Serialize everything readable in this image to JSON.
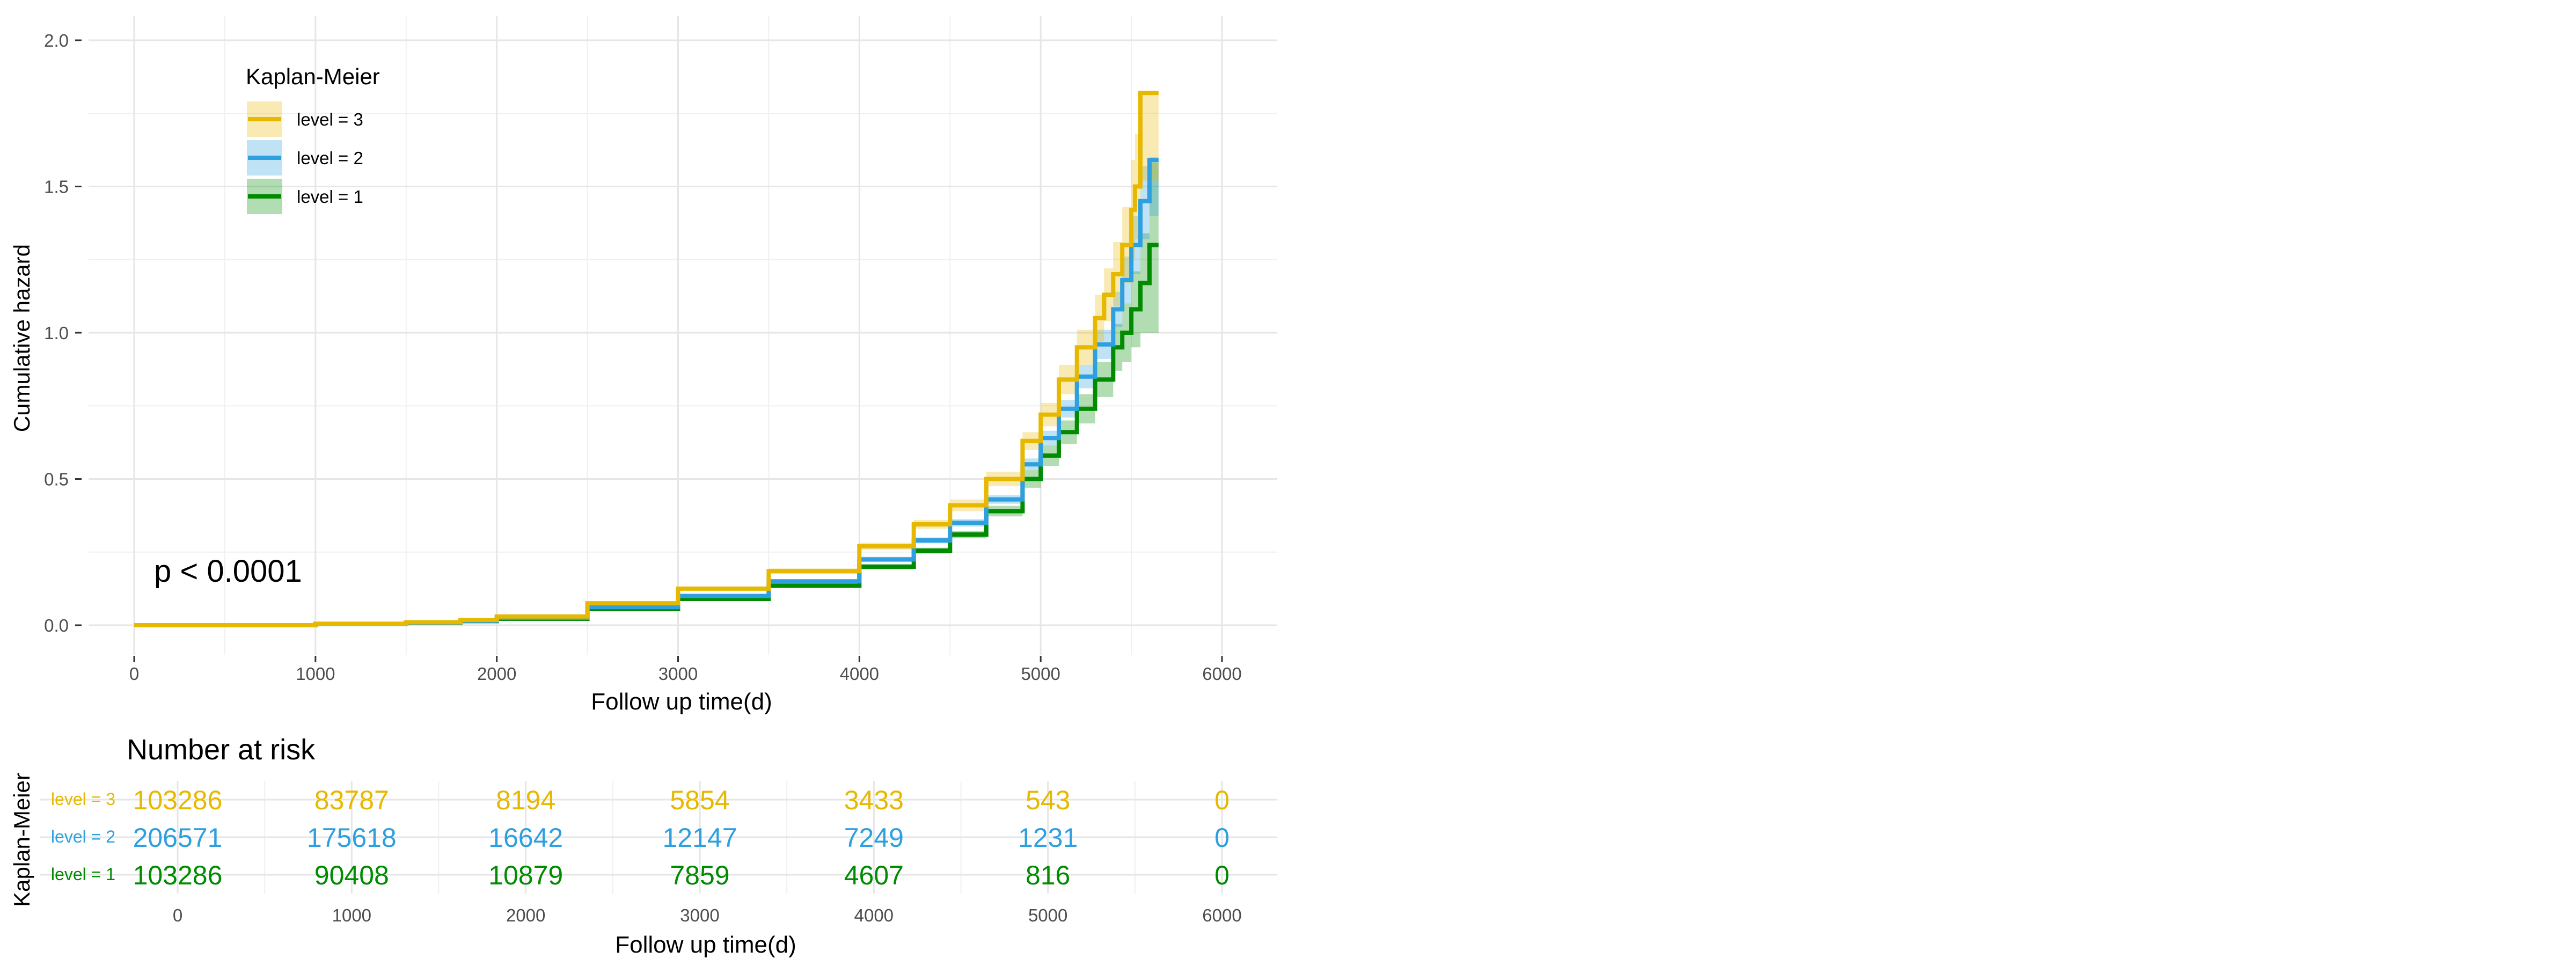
{
  "chart_data": [
    {
      "type": "line",
      "subtype": "step",
      "ylabel": "Cumulative hazard",
      "xlabel": "Follow up time(d)",
      "xlim": [
        0,
        6000
      ],
      "ylim": [
        0,
        2.0
      ],
      "xticks": [
        "0",
        "1000",
        "2000",
        "3000",
        "4000",
        "5000",
        "6000"
      ],
      "yticks": [
        "0.0",
        "0.5",
        "1.0",
        "1.5",
        "2.0"
      ],
      "grid": true,
      "annotation": "p < 0.0001",
      "legend": {
        "title": "Kaplan-Meier",
        "position": "top-left",
        "entries": [
          "level = 3",
          "level = 2",
          "level = 1"
        ]
      },
      "series": [
        {
          "name": "level = 3",
          "color": "#E7B800",
          "x": [
            0,
            1000,
            1500,
            1800,
            2000,
            2500,
            3000,
            3500,
            4000,
            4300,
            4500,
            4700,
            4900,
            5000,
            5100,
            5200,
            5300,
            5350,
            5400,
            5450,
            5500,
            5520,
            5550,
            5650
          ],
          "y": [
            0.0,
            0.005,
            0.01,
            0.018,
            0.03,
            0.075,
            0.125,
            0.185,
            0.27,
            0.345,
            0.41,
            0.5,
            0.63,
            0.72,
            0.84,
            0.95,
            1.05,
            1.13,
            1.2,
            1.3,
            1.42,
            1.5,
            1.82,
            1.82
          ],
          "ci_lower": [
            0.0,
            0.004,
            0.008,
            0.015,
            0.027,
            0.07,
            0.118,
            0.176,
            0.258,
            0.33,
            0.39,
            0.475,
            0.6,
            0.68,
            0.79,
            0.89,
            0.97,
            1.04,
            1.09,
            1.17,
            1.25,
            1.32,
            1.52,
            1.52
          ],
          "ci_upper": [
            0.0,
            0.006,
            0.012,
            0.021,
            0.033,
            0.08,
            0.132,
            0.194,
            0.282,
            0.36,
            0.43,
            0.525,
            0.66,
            0.76,
            0.89,
            1.01,
            1.13,
            1.22,
            1.31,
            1.43,
            1.59,
            1.68,
            1.82,
            1.82
          ]
        },
        {
          "name": "level = 2",
          "color": "#2E9FDF",
          "x": [
            0,
            1000,
            1500,
            1800,
            2000,
            2500,
            3000,
            3500,
            4000,
            4300,
            4500,
            4700,
            4900,
            5000,
            5100,
            5200,
            5300,
            5400,
            5450,
            5500,
            5550,
            5600,
            5650
          ],
          "y": [
            0.0,
            0.004,
            0.009,
            0.015,
            0.025,
            0.062,
            0.1,
            0.15,
            0.225,
            0.29,
            0.35,
            0.43,
            0.55,
            0.64,
            0.74,
            0.85,
            0.96,
            1.08,
            1.18,
            1.3,
            1.45,
            1.59,
            1.59
          ],
          "ci_lower": [
            0.0,
            0.003,
            0.008,
            0.013,
            0.023,
            0.058,
            0.095,
            0.143,
            0.216,
            0.28,
            0.337,
            0.415,
            0.53,
            0.615,
            0.71,
            0.81,
            0.91,
            1.02,
            1.1,
            1.2,
            1.32,
            1.4,
            1.4
          ],
          "ci_upper": [
            0.0,
            0.005,
            0.01,
            0.017,
            0.027,
            0.066,
            0.105,
            0.157,
            0.234,
            0.3,
            0.363,
            0.445,
            0.57,
            0.665,
            0.77,
            0.89,
            1.01,
            1.14,
            1.26,
            1.4,
            1.57,
            1.6,
            1.6
          ]
        },
        {
          "name": "level = 1",
          "color": "#008B00",
          "x": [
            0,
            1000,
            1500,
            1800,
            2000,
            2500,
            3000,
            3500,
            4000,
            4300,
            4500,
            4700,
            4900,
            5000,
            5100,
            5200,
            5300,
            5400,
            5450,
            5500,
            5550,
            5600,
            5650
          ],
          "y": [
            0.0,
            0.004,
            0.008,
            0.014,
            0.022,
            0.055,
            0.09,
            0.135,
            0.2,
            0.255,
            0.31,
            0.39,
            0.5,
            0.58,
            0.66,
            0.74,
            0.84,
            0.95,
            1.0,
            1.08,
            1.17,
            1.3,
            1.3
          ],
          "ci_lower": [
            0.0,
            0.003,
            0.007,
            0.012,
            0.02,
            0.051,
            0.085,
            0.128,
            0.191,
            0.245,
            0.297,
            0.372,
            0.47,
            0.545,
            0.62,
            0.69,
            0.78,
            0.87,
            0.9,
            0.95,
            1.0,
            1.0,
            1.0
          ],
          "ci_upper": [
            0.0,
            0.005,
            0.009,
            0.016,
            0.024,
            0.059,
            0.095,
            0.142,
            0.209,
            0.265,
            0.323,
            0.408,
            0.53,
            0.615,
            0.7,
            0.79,
            0.9,
            1.03,
            1.1,
            1.21,
            1.34,
            1.58,
            1.58
          ]
        }
      ]
    },
    {
      "type": "table",
      "title": "Number at risk",
      "ylabel": "Kaplan-Meier",
      "xlabel": "Follow up time(d)",
      "xlim": [
        0,
        6000
      ],
      "xticks": [
        "0",
        "1000",
        "2000",
        "3000",
        "4000",
        "5000",
        "6000"
      ],
      "x": [
        0,
        1000,
        2000,
        3000,
        4000,
        5000,
        6000
      ],
      "rows": [
        {
          "name": "level = 3",
          "color": "#E7B800",
          "values": [
            "103286",
            "83787",
            "8194",
            "5854",
            "3433",
            "543",
            "0"
          ]
        },
        {
          "name": "level = 2",
          "color": "#2E9FDF",
          "values": [
            "206571",
            "175618",
            "16642",
            "12147",
            "7249",
            "1231",
            "0"
          ]
        },
        {
          "name": "level = 1",
          "color": "#008B00",
          "values": [
            "103286",
            "90408",
            "10879",
            "7859",
            "4607",
            "816",
            "0"
          ]
        }
      ]
    }
  ]
}
